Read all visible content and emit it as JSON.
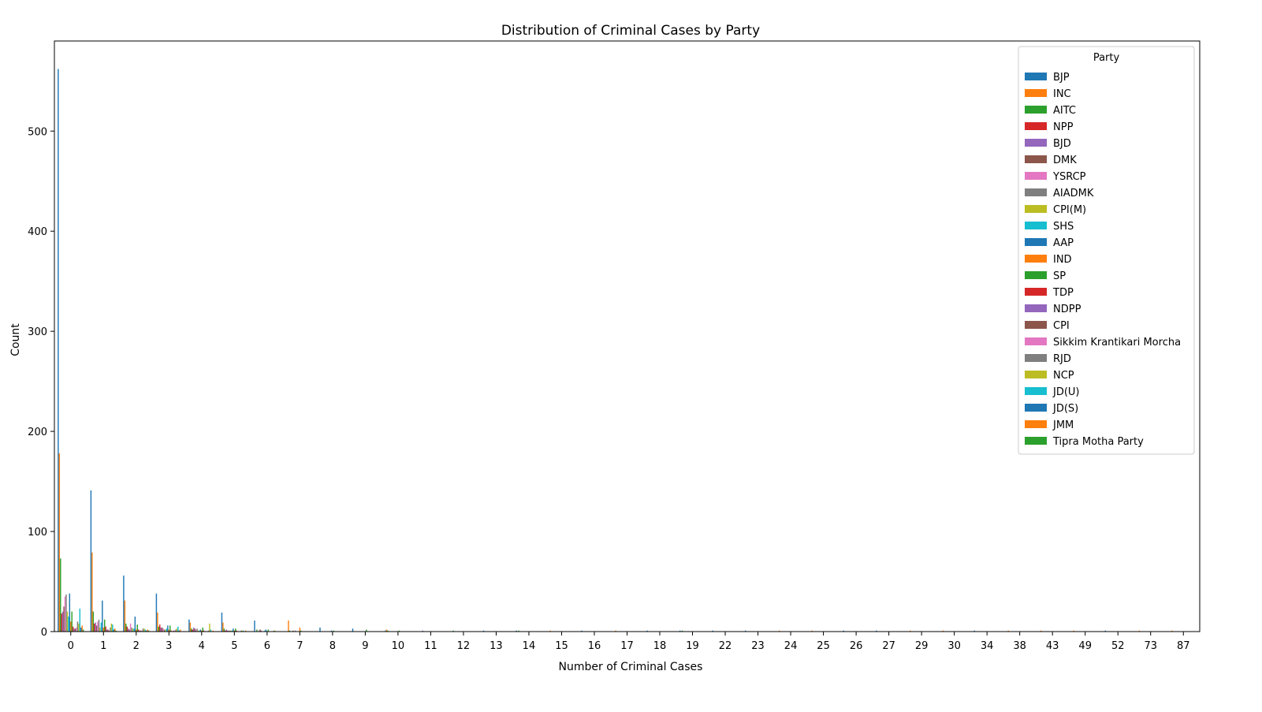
{
  "chart_data": {
    "type": "bar",
    "title": "Distribution of Criminal Cases by Party",
    "xlabel": "Number of Criminal Cases",
    "ylabel": "Count",
    "ylim": [
      0,
      590
    ],
    "yticks": [
      0,
      100,
      200,
      300,
      400,
      500
    ],
    "grid": false,
    "legend_title": "Party",
    "legend_position": "top-right",
    "categories": [
      "0",
      "1",
      "2",
      "3",
      "4",
      "5",
      "6",
      "7",
      "8",
      "9",
      "10",
      "11",
      "12",
      "13",
      "14",
      "15",
      "16",
      "17",
      "18",
      "19",
      "22",
      "23",
      "24",
      "25",
      "26",
      "27",
      "29",
      "30",
      "34",
      "38",
      "43",
      "49",
      "52",
      "73",
      "87"
    ],
    "series": [
      {
        "name": "BJP",
        "color": "#1f77b4",
        "values": [
          562,
          141,
          56,
          38,
          12,
          19,
          11,
          0,
          4,
          3,
          1,
          0,
          0,
          1,
          1,
          0,
          1,
          0,
          1,
          1,
          1,
          1,
          0,
          0,
          1,
          1,
          0,
          0,
          1,
          0,
          0,
          0,
          1,
          0,
          0
        ]
      },
      {
        "name": "INC",
        "color": "#ff7f0e",
        "values": [
          178,
          79,
          31,
          19,
          9,
          9,
          0,
          11,
          0,
          0,
          2,
          0,
          0,
          0,
          0,
          1,
          0,
          1,
          0,
          0,
          0,
          0,
          1,
          1,
          0,
          0,
          1,
          1,
          0,
          1,
          1,
          1,
          0,
          1,
          1
        ]
      },
      {
        "name": "AITC",
        "color": "#2ca02c",
        "values": [
          73,
          20,
          8,
          5,
          3,
          3,
          2,
          1,
          0,
          0,
          1,
          0,
          1,
          0,
          1,
          0,
          0,
          0,
          0,
          1,
          0,
          0,
          0,
          0,
          0,
          0,
          0,
          0,
          0,
          0,
          0,
          0,
          0,
          0,
          0
        ]
      },
      {
        "name": "NPP",
        "color": "#d62728",
        "values": [
          18,
          8,
          5,
          7,
          2,
          1,
          0,
          0,
          0,
          0,
          0,
          0,
          0,
          0,
          0,
          0,
          0,
          0,
          0,
          0,
          0,
          0,
          0,
          0,
          0,
          0,
          0,
          0,
          0,
          0,
          0,
          0,
          0,
          0,
          0
        ]
      },
      {
        "name": "BJD",
        "color": "#9467bd",
        "values": [
          20,
          9,
          3,
          4,
          4,
          2,
          1,
          0,
          0,
          0,
          0,
          1,
          0,
          0,
          0,
          0,
          0,
          0,
          0,
          0,
          0,
          0,
          0,
          0,
          0,
          0,
          0,
          0,
          0,
          0,
          0,
          0,
          0,
          0,
          0
        ]
      },
      {
        "name": "DMK",
        "color": "#8c564b",
        "values": [
          25,
          6,
          2,
          4,
          3,
          1,
          2,
          1,
          0,
          0,
          0,
          0,
          0,
          0,
          0,
          0,
          0,
          0,
          0,
          0,
          0,
          0,
          0,
          0,
          0,
          0,
          0,
          0,
          0,
          0,
          0,
          0,
          0,
          0,
          0
        ]
      },
      {
        "name": "YSRCP",
        "color": "#e377c2",
        "values": [
          35,
          10,
          8,
          3,
          2,
          1,
          1,
          0,
          0,
          0,
          0,
          0,
          0,
          0,
          0,
          0,
          0,
          0,
          0,
          0,
          0,
          0,
          0,
          0,
          0,
          0,
          0,
          0,
          0,
          0,
          0,
          0,
          0,
          0,
          0
        ]
      },
      {
        "name": "AIADMK",
        "color": "#7f7f7f",
        "values": [
          37,
          12,
          4,
          2,
          3,
          1,
          0,
          1,
          0,
          0,
          0,
          0,
          0,
          0,
          0,
          0,
          0,
          0,
          0,
          0,
          0,
          0,
          0,
          0,
          0,
          0,
          0,
          0,
          0,
          0,
          0,
          0,
          0,
          0,
          0
        ]
      },
      {
        "name": "CPI(M)",
        "color": "#bcbd22",
        "values": [
          20,
          4,
          3,
          2,
          1,
          1,
          0,
          0,
          0,
          0,
          0,
          0,
          0,
          0,
          0,
          0,
          0,
          0,
          0,
          0,
          0,
          0,
          0,
          0,
          0,
          0,
          0,
          0,
          0,
          0,
          0,
          0,
          0,
          0,
          0
        ]
      },
      {
        "name": "SHS",
        "color": "#17becf",
        "values": [
          15,
          9,
          3,
          3,
          1,
          1,
          1,
          0,
          0,
          0,
          0,
          0,
          0,
          0,
          0,
          0,
          0,
          0,
          0,
          0,
          0,
          0,
          0,
          0,
          0,
          0,
          0,
          0,
          0,
          0,
          0,
          0,
          0,
          0,
          0
        ]
      },
      {
        "name": "AAP",
        "color": "#1f77b4",
        "values": [
          38,
          31,
          15,
          6,
          2,
          3,
          2,
          0,
          1,
          0,
          0,
          0,
          0,
          0,
          0,
          0,
          0,
          0,
          0,
          0,
          0,
          0,
          0,
          0,
          0,
          0,
          0,
          0,
          0,
          0,
          0,
          0,
          0,
          0,
          0
        ]
      },
      {
        "name": "IND",
        "color": "#ff7f0e",
        "values": [
          10,
          4,
          2,
          2,
          1,
          1,
          0,
          4,
          0,
          0,
          0,
          0,
          0,
          0,
          0,
          0,
          0,
          0,
          0,
          0,
          0,
          0,
          0,
          0,
          0,
          0,
          0,
          0,
          0,
          0,
          0,
          0,
          0,
          0,
          0
        ]
      },
      {
        "name": "SP",
        "color": "#2ca02c",
        "values": [
          20,
          12,
          7,
          6,
          4,
          3,
          2,
          1,
          1,
          2,
          1,
          0,
          0,
          0,
          0,
          0,
          0,
          0,
          0,
          0,
          0,
          0,
          0,
          0,
          0,
          0,
          0,
          0,
          0,
          0,
          0,
          0,
          0,
          0,
          0
        ]
      },
      {
        "name": "TDP",
        "color": "#d62728",
        "values": [
          5,
          5,
          2,
          1,
          1,
          1,
          0,
          0,
          0,
          0,
          0,
          0,
          0,
          0,
          0,
          0,
          0,
          0,
          0,
          0,
          0,
          0,
          0,
          0,
          0,
          0,
          0,
          0,
          0,
          0,
          0,
          0,
          0,
          0,
          0
        ]
      },
      {
        "name": "NDPP",
        "color": "#9467bd",
        "values": [
          3,
          2,
          1,
          0,
          0,
          0,
          0,
          0,
          0,
          0,
          0,
          0,
          0,
          0,
          0,
          0,
          0,
          0,
          0,
          0,
          0,
          0,
          0,
          0,
          0,
          0,
          0,
          0,
          0,
          0,
          0,
          0,
          0,
          0,
          0
        ]
      },
      {
        "name": "CPI",
        "color": "#8c564b",
        "values": [
          3,
          2,
          1,
          1,
          0,
          0,
          0,
          0,
          0,
          0,
          0,
          0,
          0,
          0,
          0,
          0,
          0,
          0,
          0,
          0,
          0,
          0,
          0,
          0,
          0,
          0,
          0,
          0,
          0,
          0,
          0,
          0,
          0,
          0,
          0
        ]
      },
      {
        "name": "Sikkim Krantikari Morcha",
        "color": "#e377c2",
        "values": [
          4,
          1,
          1,
          1,
          0,
          0,
          0,
          0,
          0,
          0,
          0,
          0,
          0,
          0,
          0,
          0,
          0,
          0,
          0,
          0,
          0,
          0,
          0,
          0,
          0,
          0,
          0,
          0,
          0,
          0,
          0,
          0,
          0,
          0,
          0
        ]
      },
      {
        "name": "RJD",
        "color": "#7f7f7f",
        "values": [
          10,
          4,
          3,
          2,
          1,
          1,
          1,
          0,
          0,
          0,
          0,
          0,
          0,
          0,
          0,
          0,
          0,
          0,
          0,
          0,
          0,
          0,
          0,
          0,
          0,
          0,
          0,
          0,
          0,
          0,
          0,
          0,
          0,
          0,
          0
        ]
      },
      {
        "name": "NCP",
        "color": "#bcbd22",
        "values": [
          8,
          8,
          3,
          3,
          8,
          1,
          1,
          0,
          0,
          0,
          0,
          0,
          0,
          0,
          0,
          0,
          0,
          0,
          0,
          0,
          0,
          0,
          0,
          0,
          0,
          0,
          0,
          0,
          0,
          0,
          0,
          0,
          0,
          0,
          0
        ]
      },
      {
        "name": "JD(U)",
        "color": "#17becf",
        "values": [
          23,
          7,
          2,
          5,
          2,
          1,
          0,
          0,
          0,
          0,
          0,
          0,
          0,
          0,
          0,
          0,
          0,
          0,
          0,
          0,
          0,
          0,
          0,
          0,
          0,
          0,
          0,
          0,
          0,
          0,
          0,
          0,
          0,
          0,
          0
        ]
      },
      {
        "name": "JD(S)",
        "color": "#1f77b4",
        "values": [
          4,
          2,
          1,
          1,
          0,
          0,
          0,
          0,
          0,
          0,
          0,
          0,
          0,
          0,
          0,
          0,
          0,
          0,
          0,
          0,
          0,
          0,
          0,
          0,
          0,
          0,
          0,
          0,
          0,
          0,
          0,
          0,
          0,
          0,
          0
        ]
      },
      {
        "name": "JMM",
        "color": "#ff7f0e",
        "values": [
          6,
          3,
          2,
          2,
          1,
          1,
          0,
          0,
          0,
          0,
          0,
          0,
          0,
          0,
          0,
          0,
          0,
          0,
          0,
          0,
          0,
          0,
          0,
          0,
          0,
          0,
          0,
          0,
          0,
          0,
          0,
          0,
          0,
          0,
          0
        ]
      },
      {
        "name": "Tipra Motha Party",
        "color": "#2ca02c",
        "values": [
          2,
          1,
          1,
          0,
          0,
          0,
          0,
          0,
          0,
          0,
          0,
          0,
          0,
          0,
          0,
          0,
          0,
          0,
          0,
          0,
          0,
          0,
          0,
          0,
          0,
          0,
          0,
          0,
          0,
          0,
          0,
          0,
          0,
          0,
          0
        ]
      }
    ]
  }
}
